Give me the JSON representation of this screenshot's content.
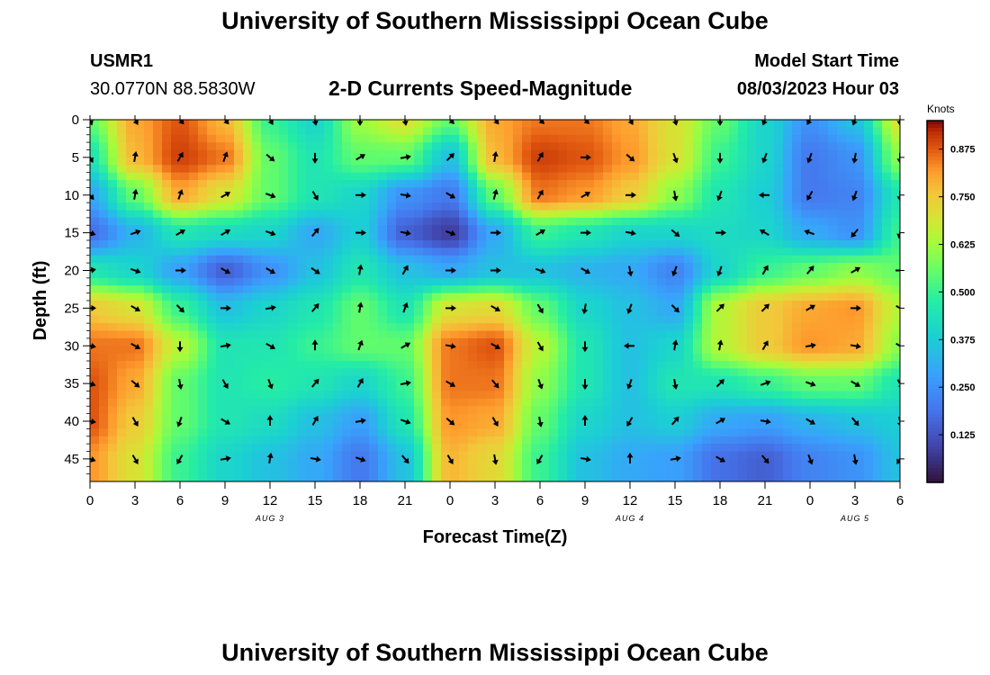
{
  "header": {
    "title": "University of Southern Mississippi Ocean Cube",
    "station_id": "USMR1",
    "station_coords": "30.0770N  88.5830W",
    "subtitle": "2-D Currents Speed-Magnitude",
    "model_start_label": "Model Start Time",
    "model_start_value": "08/03/2023 Hour 03"
  },
  "footer": {
    "title": "University of Southern Mississippi Ocean Cube"
  },
  "chart_data": {
    "type": "heatmap",
    "title": "2-D Currents Speed-Magnitude",
    "xlabel": "Forecast Time(Z)",
    "ylabel": "Depth (ft)",
    "x_tick_labels": [
      "0",
      "3",
      "6",
      "9",
      "12",
      "15",
      "18",
      "21",
      "0",
      "3",
      "6",
      "9",
      "12",
      "15",
      "18",
      "21",
      "0",
      "3",
      "6"
    ],
    "x_range_hours": [
      0,
      54
    ],
    "date_labels": [
      {
        "hour": 12,
        "label": "AUG 3"
      },
      {
        "hour": 36,
        "label": "AUG 4"
      },
      {
        "hour": 51,
        "label": "AUG 5"
      }
    ],
    "y_ticks": [
      0,
      5,
      10,
      15,
      20,
      25,
      30,
      35,
      40,
      45
    ],
    "y_range": [
      0,
      48
    ],
    "y_inverted": true,
    "colorbar": {
      "label": "Knots",
      "ticks": [
        "0.875",
        "0.750",
        "0.625",
        "0.500",
        "0.375",
        "0.250",
        "0.125"
      ],
      "tick_values": [
        0.875,
        0.75,
        0.625,
        0.5,
        0.375,
        0.25,
        0.125
      ],
      "range": [
        0,
        0.95
      ],
      "colormap": "turbo"
    },
    "speed_grid": {
      "times_hours": [
        0,
        3,
        6,
        9,
        12,
        15,
        18,
        21,
        24,
        27,
        30,
        33,
        36,
        39,
        42,
        45,
        48,
        51,
        54
      ],
      "depths_ft": [
        0,
        5,
        10,
        15,
        20,
        25,
        30,
        35,
        40,
        45
      ],
      "values_knots": [
        [
          0.55,
          0.8,
          0.88,
          0.78,
          0.5,
          0.4,
          0.62,
          0.7,
          0.55,
          0.8,
          0.85,
          0.85,
          0.8,
          0.7,
          0.55,
          0.4,
          0.25,
          0.35,
          0.7
        ],
        [
          0.45,
          0.78,
          0.9,
          0.85,
          0.55,
          0.45,
          0.55,
          0.55,
          0.35,
          0.78,
          0.9,
          0.88,
          0.82,
          0.7,
          0.5,
          0.4,
          0.2,
          0.25,
          0.6
        ],
        [
          0.3,
          0.55,
          0.8,
          0.7,
          0.55,
          0.45,
          0.4,
          0.25,
          0.2,
          0.55,
          0.85,
          0.82,
          0.75,
          0.6,
          0.45,
          0.38,
          0.2,
          0.22,
          0.45
        ],
        [
          0.18,
          0.32,
          0.45,
          0.42,
          0.4,
          0.3,
          0.38,
          0.15,
          0.08,
          0.3,
          0.5,
          0.45,
          0.4,
          0.4,
          0.42,
          0.4,
          0.3,
          0.25,
          0.5
        ],
        [
          0.45,
          0.4,
          0.28,
          0.15,
          0.25,
          0.35,
          0.45,
          0.35,
          0.3,
          0.35,
          0.35,
          0.32,
          0.3,
          0.22,
          0.4,
          0.5,
          0.55,
          0.6,
          0.55
        ],
        [
          0.75,
          0.7,
          0.5,
          0.35,
          0.4,
          0.45,
          0.55,
          0.45,
          0.7,
          0.72,
          0.55,
          0.4,
          0.35,
          0.3,
          0.65,
          0.75,
          0.8,
          0.82,
          0.65
        ],
        [
          0.85,
          0.85,
          0.65,
          0.45,
          0.45,
          0.5,
          0.55,
          0.55,
          0.85,
          0.88,
          0.65,
          0.45,
          0.35,
          0.4,
          0.65,
          0.75,
          0.82,
          0.8,
          0.6
        ],
        [
          0.88,
          0.8,
          0.55,
          0.45,
          0.48,
          0.45,
          0.4,
          0.5,
          0.85,
          0.85,
          0.6,
          0.45,
          0.35,
          0.45,
          0.45,
          0.5,
          0.55,
          0.55,
          0.45
        ],
        [
          0.88,
          0.75,
          0.55,
          0.45,
          0.42,
          0.35,
          0.28,
          0.45,
          0.82,
          0.8,
          0.55,
          0.4,
          0.35,
          0.38,
          0.3,
          0.28,
          0.32,
          0.35,
          0.38
        ],
        [
          0.82,
          0.7,
          0.5,
          0.4,
          0.35,
          0.3,
          0.2,
          0.35,
          0.78,
          0.72,
          0.5,
          0.35,
          0.3,
          0.28,
          0.18,
          0.15,
          0.22,
          0.25,
          0.35
        ]
      ]
    },
    "arrows": {
      "note_units": "direction in degrees, 0 = up (north), clockwise",
      "rows": [
        {
          "depth": 0,
          "dirs": [
            160,
            150,
            140,
            140,
            150,
            170,
            180,
            170,
            135,
            140,
            135,
            135,
            150,
            165,
            180,
            200,
            210,
            200,
            180
          ]
        },
        {
          "depth": 5,
          "dirs": [
            150,
            10,
            30,
            20,
            130,
            180,
            60,
            80,
            45,
            10,
            30,
            90,
            130,
            160,
            180,
            200,
            200,
            190,
            180
          ]
        },
        {
          "depth": 10,
          "dirs": [
            140,
            10,
            20,
            60,
            110,
            150,
            90,
            100,
            120,
            15,
            30,
            60,
            90,
            170,
            200,
            270,
            210,
            200,
            180
          ]
        },
        {
          "depth": 15,
          "dirs": [
            110,
            70,
            60,
            60,
            110,
            40,
            90,
            100,
            110,
            90,
            60,
            90,
            100,
            130,
            90,
            300,
            290,
            220,
            190
          ]
        },
        {
          "depth": 20,
          "dirs": [
            80,
            110,
            90,
            120,
            120,
            125,
            10,
            30,
            90,
            90,
            110,
            120,
            170,
            200,
            200,
            30,
            40,
            60,
            90
          ]
        },
        {
          "depth": 25,
          "dirs": [
            90,
            120,
            135,
            90,
            80,
            40,
            10,
            20,
            90,
            120,
            150,
            190,
            200,
            135,
            45,
            45,
            60,
            90,
            120
          ]
        },
        {
          "depth": 30,
          "dirs": [
            100,
            120,
            180,
            80,
            120,
            0,
            20,
            60,
            100,
            120,
            150,
            180,
            270,
            10,
            10,
            30,
            80,
            100,
            120
          ]
        },
        {
          "depth": 35,
          "dirs": [
            110,
            130,
            170,
            150,
            160,
            40,
            30,
            80,
            120,
            140,
            160,
            180,
            200,
            170,
            45,
            70,
            110,
            120,
            150
          ]
        },
        {
          "depth": 40,
          "dirs": [
            100,
            150,
            200,
            120,
            0,
            30,
            80,
            110,
            130,
            150,
            170,
            0,
            210,
            40,
            60,
            100,
            120,
            140,
            170
          ]
        },
        {
          "depth": 45,
          "dirs": [
            110,
            150,
            210,
            80,
            10,
            100,
            110,
            140,
            150,
            170,
            210,
            100,
            0,
            80,
            120,
            140,
            160,
            170,
            210
          ]
        }
      ]
    }
  }
}
